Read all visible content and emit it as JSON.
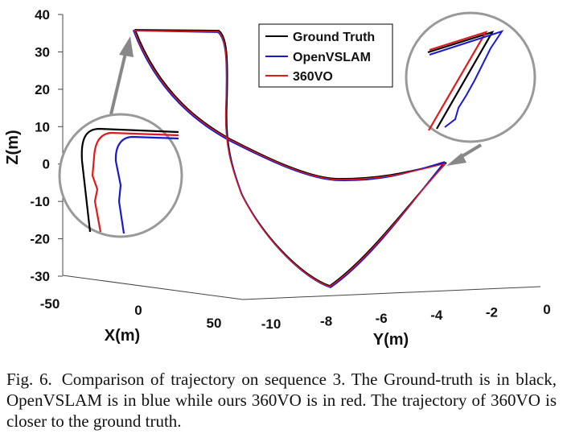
{
  "chart_data": {
    "type": "line",
    "title": "",
    "projection": "3d",
    "axes": {
      "z": {
        "label": "Z(m)",
        "ticks": [
          "40",
          "30",
          "20",
          "10",
          "0",
          "-10",
          "-20",
          "-30"
        ],
        "range": [
          -30,
          40
        ]
      },
      "x": {
        "label": "X(m)",
        "ticks": [
          "-50",
          "0",
          "50"
        ],
        "range": [
          -50,
          50
        ]
      },
      "y": {
        "label": "Y(m)",
        "ticks": [
          "-10",
          "-8",
          "-6",
          "-4",
          "-2",
          "0"
        ],
        "range": [
          -10,
          0
        ]
      }
    },
    "series": [
      {
        "name": "Ground Truth",
        "color": "#000000"
      },
      {
        "name": "OpenVSLAM",
        "color": "#1a1acc"
      },
      {
        "name": "360VO",
        "color": "#e01a1a"
      }
    ],
    "legend": {
      "position": "top-center"
    },
    "insets": [
      {
        "name": "zoom-start",
        "description": "start corner"
      },
      {
        "name": "zoom-end",
        "description": "end corner"
      }
    ]
  },
  "caption": {
    "label": "Fig. 6.",
    "text": "Comparison of trajectory on sequence 3. The Ground-truth is in black, OpenVSLAM is in blue while ours 360VO is in red. The trajectory of 360VO is closer to the ground truth."
  }
}
